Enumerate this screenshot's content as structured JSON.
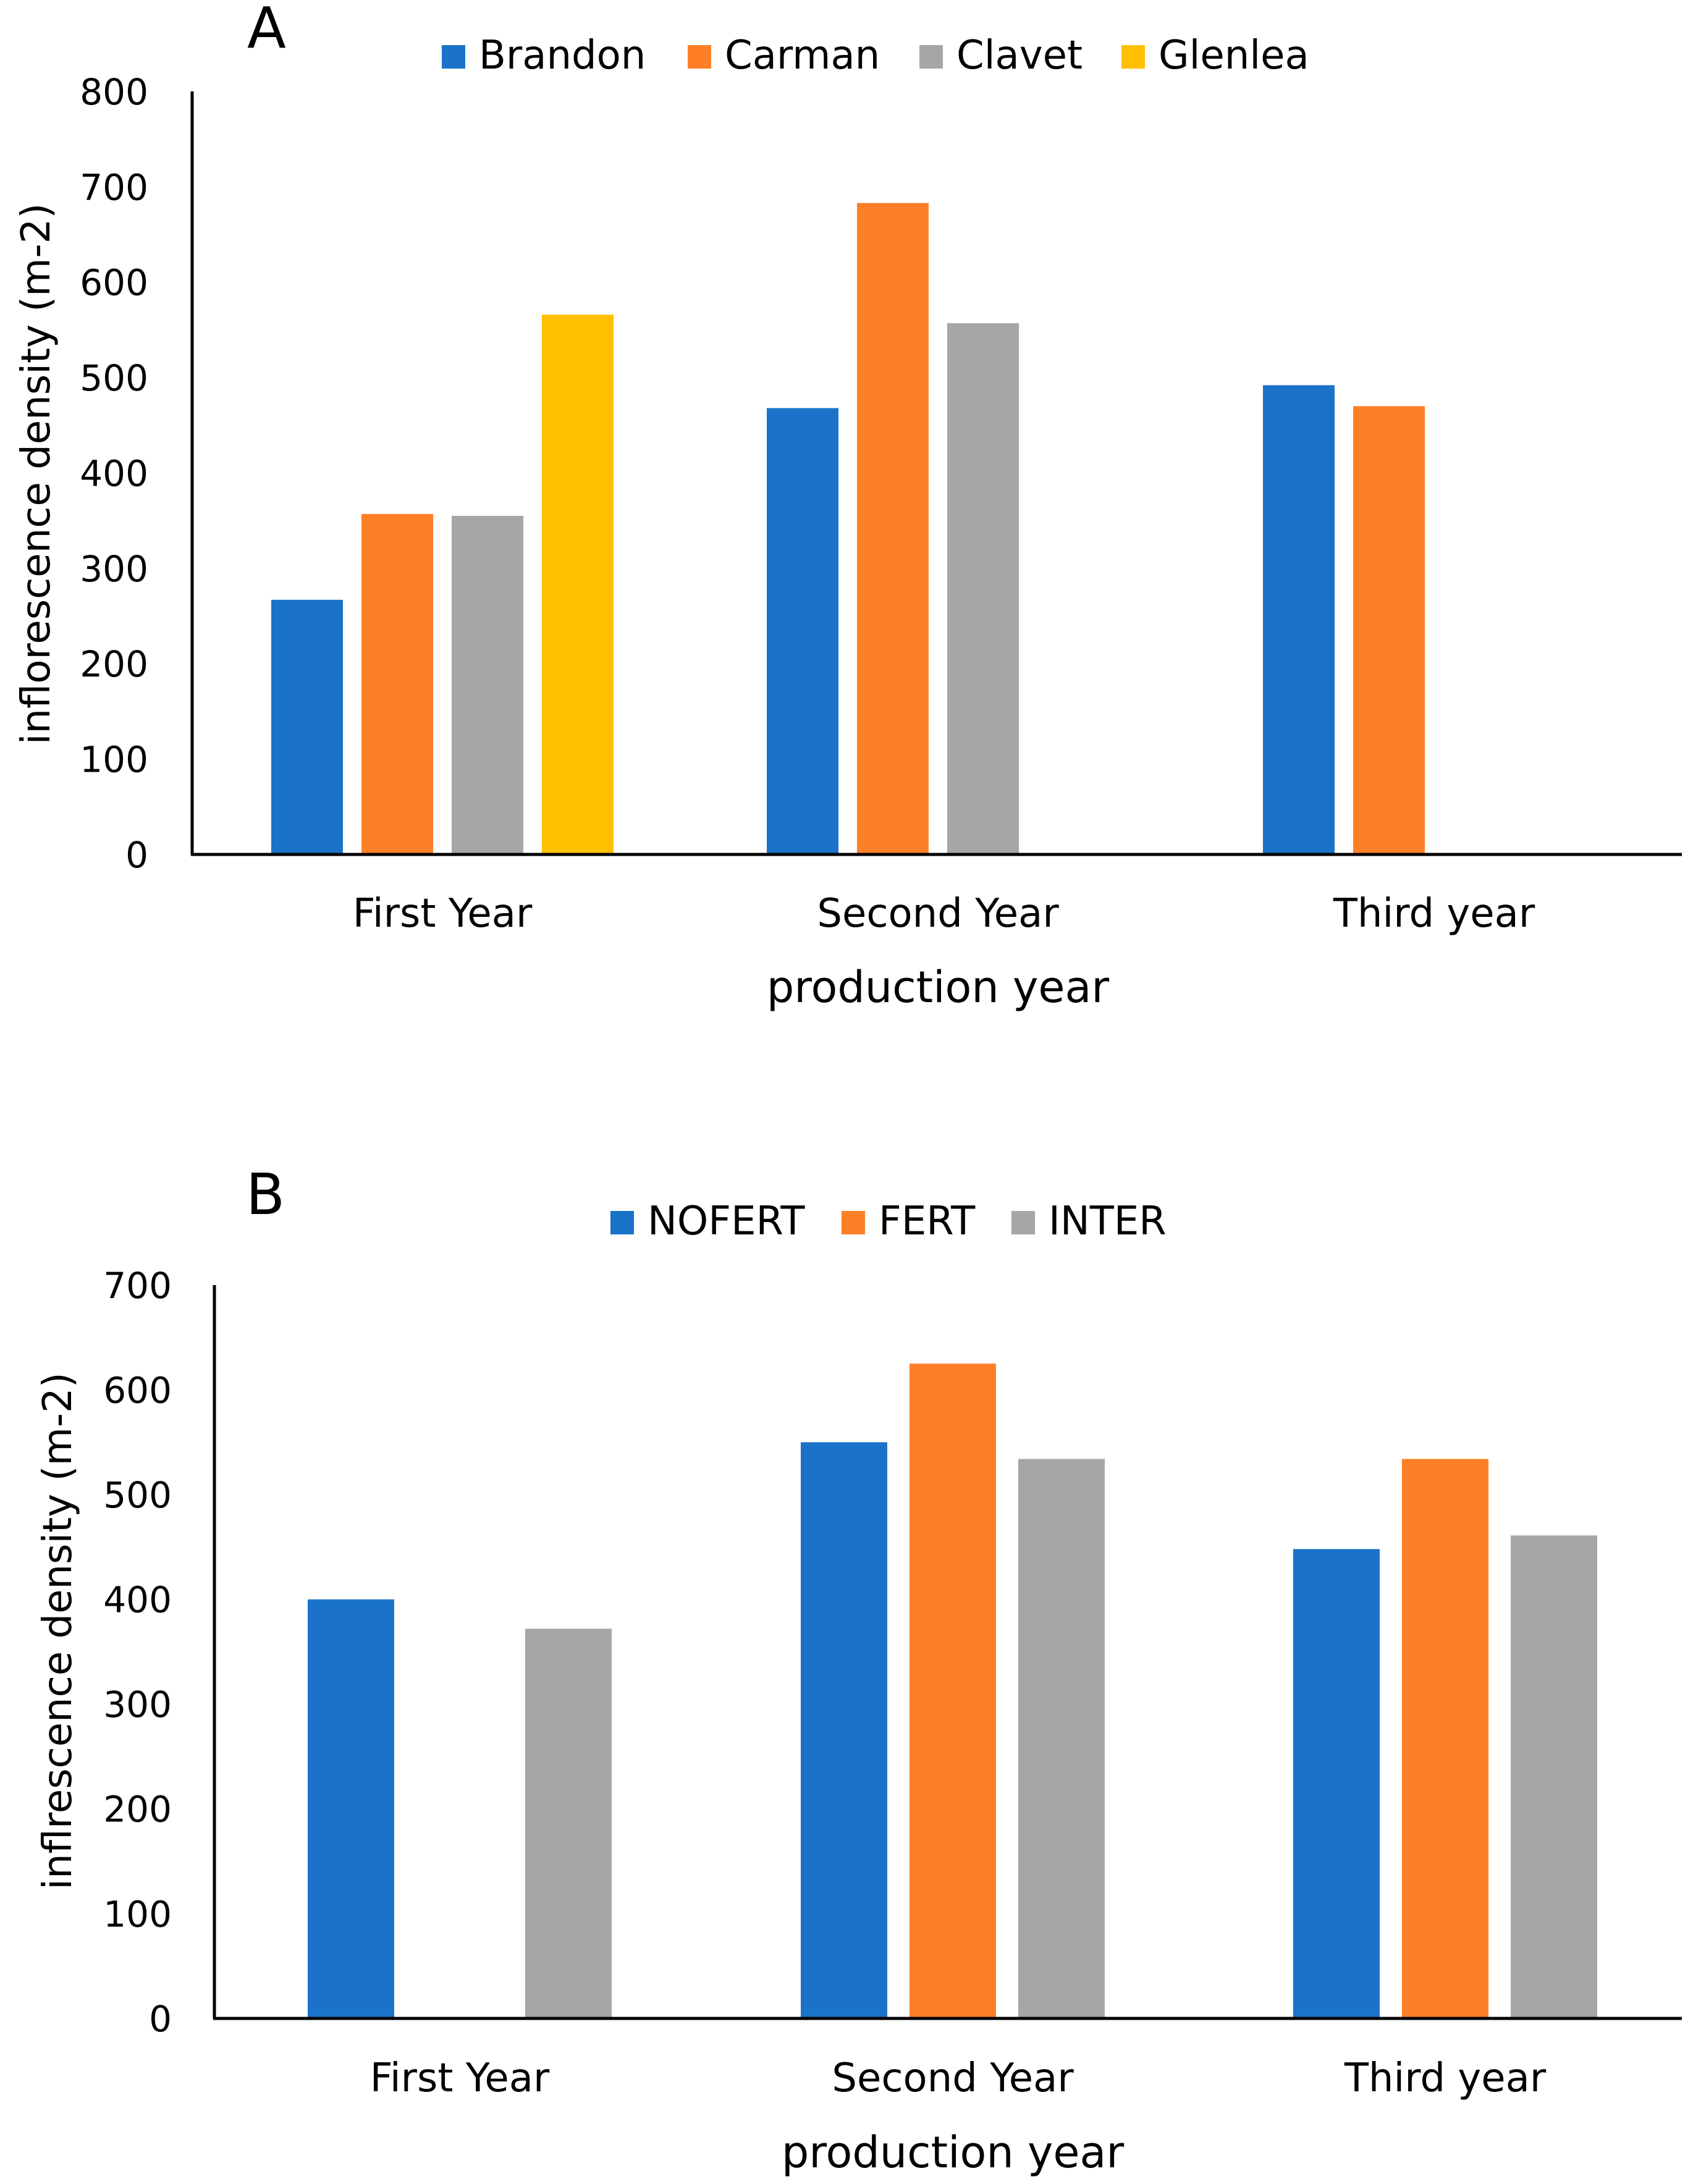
{
  "chart_data": [
    {
      "type": "bar",
      "panel_label": "A",
      "title": "",
      "xlabel": "production year",
      "ylabel": "inflorescence density (m-2)",
      "ylim": [
        0,
        800
      ],
      "yticks": [
        0,
        100,
        200,
        300,
        400,
        500,
        600,
        700,
        800
      ],
      "grid": false,
      "legend_position": "top",
      "categories": [
        "First Year",
        "Second Year",
        "Third year"
      ],
      "series": [
        {
          "name": "Brandon",
          "color": "#1A73C8",
          "values": [
            267,
            468,
            492
          ]
        },
        {
          "name": "Carman",
          "color": "#FF7F27",
          "values": [
            357,
            683,
            470
          ]
        },
        {
          "name": "Clavet",
          "color": "#A6A6A6",
          "values": [
            355,
            557,
            null
          ]
        },
        {
          "name": "Glenlea",
          "color": "#FFC000",
          "values": [
            566,
            null,
            null
          ]
        }
      ]
    },
    {
      "type": "bar",
      "panel_label": "B",
      "title": "",
      "xlabel": "production year",
      "ylabel": "inflrescence density (m-2)",
      "ylim": [
        0,
        700
      ],
      "yticks": [
        0,
        100,
        200,
        300,
        400,
        500,
        600,
        700
      ],
      "grid": false,
      "legend_position": "top",
      "categories": [
        "First Year",
        "Second Year",
        "Third year"
      ],
      "series": [
        {
          "name": "NOFERT",
          "color": "#1A73C8",
          "values": [
            400,
            550,
            448
          ]
        },
        {
          "name": "FERT",
          "color": "#FF7F27",
          "values": [
            null,
            625,
            534
          ]
        },
        {
          "name": "INTER",
          "color": "#A6A6A6",
          "values": [
            372,
            534,
            461
          ]
        }
      ]
    }
  ]
}
